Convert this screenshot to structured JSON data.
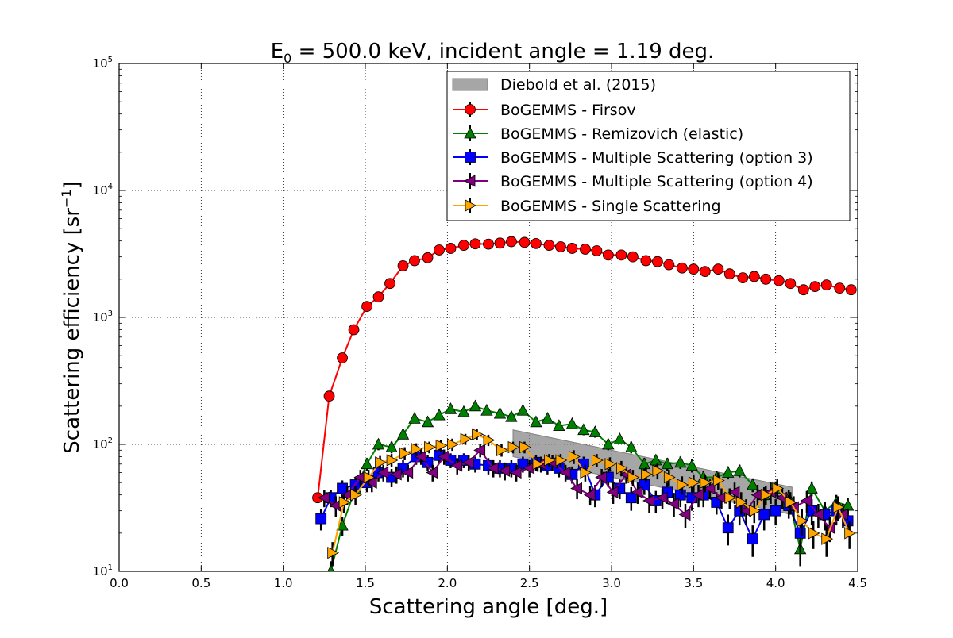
{
  "chart_data": {
    "type": "line",
    "title": "E₀ = 500.0 keV, incident angle = 1.19 deg.",
    "title_parts": {
      "lead": "E",
      "sub": "0",
      "rest": " = 500.0 keV, incident angle = 1.19 deg."
    },
    "xlabel": "Scattering angle [deg.]",
    "ylabel": "Scattering efficiency [sr⁻¹]",
    "ylabel_parts": {
      "main": "Scattering efficiency [sr",
      "sup": "−1",
      "close": "]"
    },
    "yscale": "log",
    "xlim": [
      0.0,
      4.5
    ],
    "ylim": [
      10,
      100000
    ],
    "grid": true,
    "legend_position": "top-right",
    "x_ticks": [
      "0.0",
      "0.5",
      "1.0",
      "1.5",
      "2.0",
      "2.5",
      "3.0",
      "3.5",
      "4.0",
      "4.5"
    ],
    "y_ticks": [
      {
        "value": 10,
        "base": "10",
        "exp": "1"
      },
      {
        "value": 100,
        "base": "10",
        "exp": "2"
      },
      {
        "value": 1000,
        "base": "10",
        "exp": "3"
      },
      {
        "value": 10000,
        "base": "10",
        "exp": "4"
      },
      {
        "value": 100000,
        "base": "10",
        "exp": "5"
      }
    ],
    "band": {
      "name": "Diebold et al. (2015)",
      "color": "#808080",
      "x": [
        2.4,
        4.1
      ],
      "upper": [
        130,
        46
      ],
      "lower": [
        80,
        28
      ]
    },
    "series": [
      {
        "name": "BoGEMMS - Firsov",
        "color": "#ff0000",
        "marker": "circle",
        "x": [
          1.21,
          1.28,
          1.36,
          1.43,
          1.51,
          1.58,
          1.65,
          1.73,
          1.8,
          1.88,
          1.95,
          2.02,
          2.1,
          2.17,
          2.25,
          2.32,
          2.39,
          2.47,
          2.54,
          2.62,
          2.69,
          2.76,
          2.84,
          2.91,
          2.98,
          3.06,
          3.13,
          3.21,
          3.28,
          3.35,
          3.43,
          3.5,
          3.57,
          3.65,
          3.72,
          3.8,
          3.87,
          3.94,
          4.02,
          4.09,
          4.17,
          4.24,
          4.31,
          4.39,
          4.46
        ],
        "y": [
          38,
          240,
          480,
          800,
          1220,
          1450,
          1850,
          2550,
          2800,
          2950,
          3400,
          3500,
          3700,
          3800,
          3780,
          3850,
          3950,
          3900,
          3820,
          3700,
          3600,
          3500,
          3450,
          3350,
          3100,
          3100,
          3000,
          2800,
          2750,
          2600,
          2450,
          2400,
          2300,
          2400,
          2200,
          2050,
          2100,
          2000,
          1950,
          1850,
          1650,
          1750,
          1800,
          1700,
          1650
        ],
        "err": [
          2,
          15,
          20,
          30,
          40,
          50,
          50,
          60,
          60,
          60,
          60,
          60,
          60,
          60,
          60,
          60,
          60,
          60,
          60,
          60,
          60,
          60,
          60,
          60,
          60,
          60,
          60,
          60,
          60,
          60,
          60,
          60,
          60,
          60,
          60,
          60,
          60,
          60,
          60,
          60,
          60,
          60,
          60,
          60,
          60
        ]
      },
      {
        "name": "BoGEMMS - Remizovich (elastic)",
        "color": "#008000",
        "marker": "triangle-up",
        "x": [
          1.29,
          1.36,
          1.44,
          1.51,
          1.58,
          1.66,
          1.73,
          1.8,
          1.88,
          1.95,
          2.02,
          2.1,
          2.17,
          2.24,
          2.32,
          2.39,
          2.46,
          2.54,
          2.61,
          2.68,
          2.76,
          2.83,
          2.9,
          2.98,
          3.05,
          3.12,
          3.2,
          3.27,
          3.34,
          3.42,
          3.49,
          3.56,
          3.64,
          3.71,
          3.78,
          3.86,
          3.93,
          4.0,
          4.08,
          4.15,
          4.22,
          4.3,
          4.37,
          4.44
        ],
        "y": [
          10,
          23,
          45,
          70,
          100,
          95,
          120,
          160,
          150,
          170,
          190,
          180,
          200,
          185,
          175,
          165,
          185,
          150,
          160,
          140,
          145,
          130,
          125,
          100,
          110,
          95,
          70,
          75,
          70,
          72,
          68,
          55,
          55,
          60,
          62,
          48,
          40,
          45,
          38,
          15,
          45,
          30,
          35,
          33
        ],
        "err": [
          2,
          4,
          6,
          8,
          10,
          10,
          10,
          12,
          12,
          12,
          12,
          12,
          12,
          12,
          12,
          12,
          12,
          12,
          12,
          12,
          12,
          12,
          12,
          10,
          10,
          10,
          8,
          8,
          8,
          8,
          8,
          7,
          7,
          7,
          7,
          6,
          6,
          6,
          6,
          4,
          6,
          5,
          5,
          5
        ]
      },
      {
        "name": "BoGEMMS - Multiple Scattering (option 3)",
        "color": "#0000ff",
        "marker": "square",
        "x": [
          1.23,
          1.29,
          1.36,
          1.44,
          1.51,
          1.58,
          1.66,
          1.73,
          1.81,
          1.88,
          1.95,
          2.02,
          2.1,
          2.17,
          2.25,
          2.32,
          2.39,
          2.46,
          2.54,
          2.61,
          2.68,
          2.76,
          2.83,
          2.9,
          2.98,
          3.05,
          3.12,
          3.2,
          3.27,
          3.34,
          3.42,
          3.49,
          3.56,
          3.64,
          3.71,
          3.78,
          3.86,
          3.93,
          4.0,
          4.08,
          4.15,
          4.22,
          4.3,
          4.37,
          4.44
        ],
        "y": [
          26,
          38,
          45,
          48,
          50,
          60,
          55,
          65,
          80,
          72,
          82,
          75,
          75,
          70,
          68,
          65,
          65,
          70,
          72,
          68,
          65,
          58,
          70,
          40,
          55,
          45,
          38,
          48,
          36,
          42,
          40,
          38,
          40,
          35,
          22,
          30,
          18,
          28,
          30,
          33,
          20,
          30,
          28,
          30,
          25
        ],
        "err": [
          5,
          6,
          7,
          7,
          8,
          9,
          9,
          10,
          11,
          10,
          11,
          10,
          10,
          10,
          10,
          10,
          10,
          10,
          10,
          10,
          10,
          9,
          10,
          8,
          9,
          8,
          8,
          8,
          7,
          8,
          8,
          8,
          8,
          7,
          6,
          7,
          5,
          7,
          7,
          7,
          6,
          7,
          7,
          7,
          6
        ]
      },
      {
        "name": "BoGEMMS - Multiple Scattering (option 4)",
        "color": "#800080",
        "marker": "triangle-left",
        "x": [
          1.25,
          1.32,
          1.39,
          1.47,
          1.54,
          1.61,
          1.69,
          1.76,
          1.84,
          1.91,
          1.98,
          2.06,
          2.13,
          2.2,
          2.28,
          2.35,
          2.42,
          2.5,
          2.57,
          2.64,
          2.72,
          2.79,
          2.87,
          2.94,
          3.01,
          3.09,
          3.16,
          3.23,
          3.31,
          3.38,
          3.45,
          3.53,
          3.6,
          3.67,
          3.75,
          3.82,
          3.89,
          3.97,
          4.04,
          4.11,
          4.19,
          4.26,
          4.33,
          4.41
        ],
        "y": [
          38,
          33,
          40,
          55,
          50,
          60,
          58,
          60,
          80,
          60,
          80,
          68,
          72,
          90,
          65,
          62,
          60,
          65,
          70,
          72,
          60,
          45,
          40,
          55,
          42,
          58,
          42,
          36,
          38,
          34,
          28,
          40,
          45,
          38,
          42,
          30,
          40,
          42,
          38,
          32,
          36,
          28,
          22,
          28
        ],
        "err": [
          6,
          6,
          7,
          8,
          8,
          9,
          9,
          9,
          11,
          9,
          11,
          10,
          10,
          11,
          10,
          10,
          9,
          10,
          10,
          10,
          9,
          8,
          7,
          9,
          8,
          9,
          8,
          7,
          7,
          7,
          6,
          8,
          8,
          7,
          8,
          7,
          8,
          8,
          7,
          7,
          7,
          6,
          5,
          6
        ]
      },
      {
        "name": "BoGEMMS - Single Scattering",
        "color": "#ffa500",
        "marker": "triangle-right",
        "x": [
          1.3,
          1.37,
          1.44,
          1.52,
          1.59,
          1.66,
          1.74,
          1.81,
          1.89,
          1.96,
          2.03,
          2.11,
          2.18,
          2.25,
          2.33,
          2.4,
          2.47,
          2.55,
          2.62,
          2.69,
          2.77,
          2.84,
          2.91,
          2.99,
          3.06,
          3.13,
          3.21,
          3.28,
          3.35,
          3.43,
          3.5,
          3.57,
          3.65,
          3.72,
          3.79,
          3.87,
          3.94,
          4.01,
          4.09,
          4.16,
          4.23,
          4.31,
          4.38,
          4.45
        ],
        "y": [
          14,
          35,
          40,
          55,
          72,
          75,
          85,
          92,
          95,
          98,
          100,
          110,
          120,
          108,
          90,
          95,
          95,
          70,
          75,
          75,
          80,
          60,
          75,
          70,
          65,
          55,
          58,
          62,
          55,
          48,
          50,
          50,
          52,
          38,
          35,
          30,
          40,
          45,
          35,
          25,
          20,
          18,
          32,
          20
        ],
        "err": [
          3,
          6,
          7,
          8,
          9,
          9,
          10,
          10,
          10,
          11,
          11,
          11,
          12,
          11,
          10,
          10,
          10,
          9,
          9,
          9,
          10,
          9,
          9,
          9,
          9,
          8,
          8,
          9,
          8,
          8,
          8,
          8,
          8,
          7,
          7,
          6,
          7,
          8,
          7,
          6,
          5,
          5,
          7,
          5
        ]
      }
    ]
  }
}
